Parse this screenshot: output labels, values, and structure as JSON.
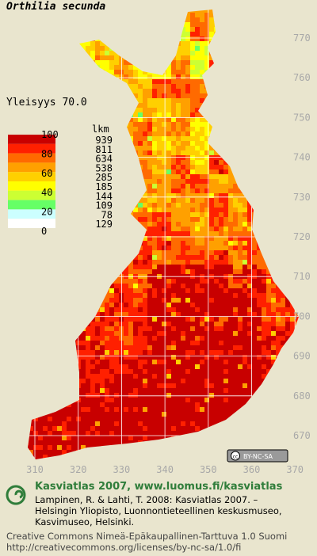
{
  "title": "Orthilia secunda",
  "frequency": "Yleisyys 70.0",
  "legend": {
    "count_header": "lkm",
    "scale_labels": [
      100,
      80,
      60,
      40,
      20,
      0
    ],
    "classes": [
      {
        "color": "#c80000",
        "count": 939
      },
      {
        "color": "#ff2000",
        "count": 811
      },
      {
        "color": "#ff6a00",
        "count": 634
      },
      {
        "color": "#ffa000",
        "count": 538
      },
      {
        "color": "#ffd000",
        "count": 285
      },
      {
        "color": "#ffff00",
        "count": 185
      },
      {
        "color": "#ccff33",
        "count": 144
      },
      {
        "color": "#66ff66",
        "count": 109
      },
      {
        "color": "#ccffff",
        "count": 78
      },
      {
        "color": "#ffffff",
        "count": 129
      }
    ]
  },
  "grid": {
    "y_labels": [
      770,
      760,
      750,
      740,
      730,
      720,
      710,
      700,
      690,
      680,
      670
    ],
    "x_labels": [
      310,
      320,
      330,
      340,
      350,
      360,
      370
    ]
  },
  "license_badge": "BY-NC-SA",
  "footer": {
    "heading": "Kasviatlas 2007, www.luomus.fi/kasviatlas",
    "citation": [
      "Lampinen, R. & Lahti, T. 2008: Kasviatlas 2007. –",
      "Helsingin Yliopisto, Luonnontieteellinen keskusmuseo,",
      "Kasvimuseo, Helsinki."
    ],
    "license": [
      "Creative Commons Nimeä-Epäkaupallinen-Tarttuva 1.0 Suomi",
      "http://creativecommons.org/licenses/by-nc-sa/1.0/fi"
    ]
  }
}
